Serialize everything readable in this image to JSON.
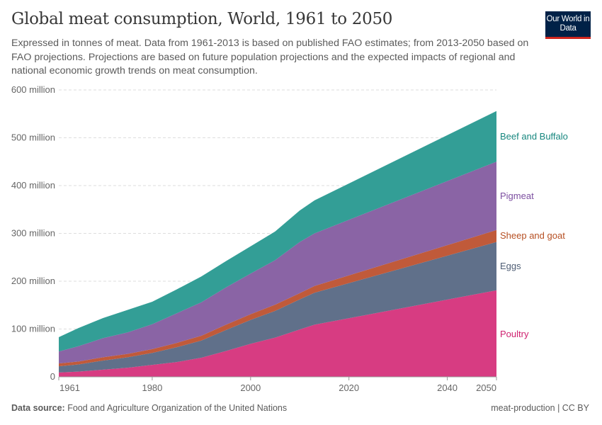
{
  "header": {
    "title": "Global meat consumption, World, 1961 to 2050",
    "subtitle": "Expressed in tonnes of meat. Data from 1961-2013 is based on published FAO estimates; from 2013-2050 based on FAO projections. Projections are based on future population projections and the expected impacts of regional and national economic growth trends on meat consumption.",
    "logo": "Our World in Data"
  },
  "footer": {
    "source_label": "Data source:",
    "source": "Food and Agriculture Organization of the United Nations",
    "license": "meat-production | CC BY"
  },
  "chart_data": {
    "type": "area",
    "stacked": true,
    "title": "Global meat consumption, World, 1961 to 2050",
    "ylim": [
      0,
      600000000
    ],
    "xlim": [
      1961,
      2050
    ],
    "grid": "horizontal dashed",
    "legend": "right (inline labels)",
    "y_ticks": [
      {
        "value": 0,
        "label": "0"
      },
      {
        "value": 100000000,
        "label": "100 million"
      },
      {
        "value": 200000000,
        "label": "200 million"
      },
      {
        "value": 300000000,
        "label": "300 million"
      },
      {
        "value": 400000000,
        "label": "400 million"
      },
      {
        "value": 500000000,
        "label": "500 million"
      },
      {
        "value": 600000000,
        "label": "600 million"
      }
    ],
    "x_ticks": [
      {
        "value": 1961,
        "label": "1961"
      },
      {
        "value": 1980,
        "label": "1980"
      },
      {
        "value": 2000,
        "label": "2000"
      },
      {
        "value": 2020,
        "label": "2020"
      },
      {
        "value": 2040,
        "label": "2040"
      },
      {
        "value": 2050,
        "label": "2050"
      }
    ],
    "x": [
      1961,
      1965,
      1970,
      1975,
      1980,
      1985,
      1990,
      1995,
      2000,
      2005,
      2010,
      2013,
      2050
    ],
    "series": [
      {
        "name": "Poultry",
        "color": "#d73c82",
        "label_color": "#cf2270",
        "values": [
          9,
          11,
          15,
          19,
          25,
          31,
          40,
          54,
          69,
          82,
          99,
          109,
          181
        ],
        "unit_multiplier": 1000000
      },
      {
        "name": "Eggs",
        "color": "#60708a",
        "label_color": "#4e5d74",
        "values": [
          13,
          15,
          19,
          22,
          25,
          31,
          36,
          44,
          50,
          56,
          63,
          67,
          101
        ],
        "unit_multiplier": 1000000
      },
      {
        "name": "Sheep and goat",
        "color": "#c05a3a",
        "label_color": "#b64f22",
        "values": [
          6,
          6,
          7,
          7,
          8,
          9,
          10,
          11,
          12,
          13,
          13,
          14,
          25
        ],
        "unit_multiplier": 1000000
      },
      {
        "name": "Pigmeat",
        "color": "#8a64a5",
        "label_color": "#7c4ea0",
        "values": [
          25,
          32,
          40,
          45,
          52,
          62,
          70,
          78,
          85,
          93,
          107,
          110,
          143
        ],
        "unit_multiplier": 1000000
      },
      {
        "name": "Beef and Buffalo",
        "color": "#339e96",
        "label_color": "#17877f",
        "values": [
          30,
          38,
          42,
          47,
          47,
          50,
          54,
          55,
          57,
          60,
          66,
          69,
          106
        ],
        "unit_multiplier": 1000000
      }
    ]
  }
}
